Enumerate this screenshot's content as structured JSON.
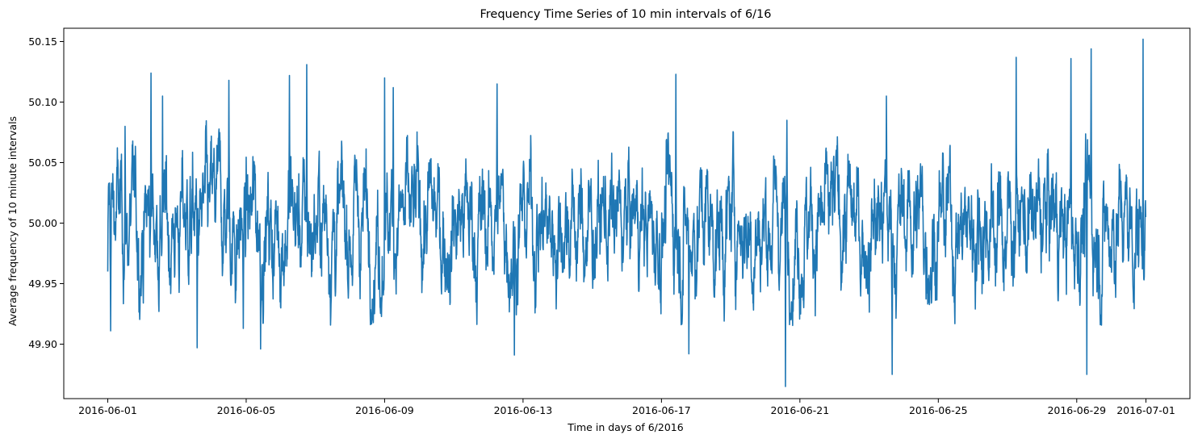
{
  "chart_data": {
    "type": "line",
    "title": "Frequency Time Series of 10 min intervals of 6/16",
    "xlabel": "Time in days of 6/2016",
    "ylabel": "Average frequency of 10 minute intervals",
    "xlim": [
      "2016-05-30T17:30",
      "2016-07-02T06:30"
    ],
    "ylim": [
      49.855,
      50.161
    ],
    "grid": false,
    "legend": "none",
    "x_ticks": [
      "2016-06-01",
      "2016-06-05",
      "2016-06-09",
      "2016-06-13",
      "2016-06-17",
      "2016-06-21",
      "2016-06-25",
      "2016-06-29",
      "2016-07-01"
    ],
    "y_ticks": [
      49.9,
      49.95,
      50.0,
      50.05,
      50.1,
      50.15
    ],
    "y_tick_labels": [
      "49.90",
      "49.95",
      "50.00",
      "50.05",
      "50.10",
      "50.15"
    ],
    "series": [
      {
        "color": "#1f77b4",
        "x_start": "2016-06-01T00:00",
        "x_end": "2016-06-30T23:50",
        "interval": "10 min",
        "values_note": "~4320 ten-minute averages; values fluctuate roughly between 49.865 and 50.152, centered near 50.00",
        "x": [
          "2016-06-01T00:00",
          "2016-06-01T02:00",
          "2016-06-01T12:00",
          "2016-06-02T06:00",
          "2016-06-02T14:00",
          "2016-06-03T14:00",
          "2016-06-04T12:00",
          "2016-06-04T22:00",
          "2016-06-05T10:00",
          "2016-06-06T06:00",
          "2016-06-06T18:00",
          "2016-06-09T00:00",
          "2016-06-09T06:00",
          "2016-06-12T06:00",
          "2016-06-12T18:00",
          "2016-06-17T10:00",
          "2016-06-17T19:00",
          "2016-06-20T14:00",
          "2016-06-20T15:00",
          "2016-06-23T12:00",
          "2016-06-23T16:00",
          "2016-06-27T06:00",
          "2016-06-28T20:00",
          "2016-06-29T07:00",
          "2016-06-29T10:00",
          "2016-06-30T22:00",
          "2016-06-30T23:50"
        ],
        "y": [
          49.96,
          49.911,
          50.08,
          50.124,
          50.105,
          49.897,
          50.118,
          49.913,
          49.896,
          50.122,
          50.131,
          50.12,
          50.112,
          50.115,
          49.891,
          50.123,
          49.892,
          49.865,
          50.085,
          50.105,
          49.875,
          50.137,
          50.136,
          49.875,
          50.144,
          50.152,
          50.005
        ]
      }
    ]
  }
}
